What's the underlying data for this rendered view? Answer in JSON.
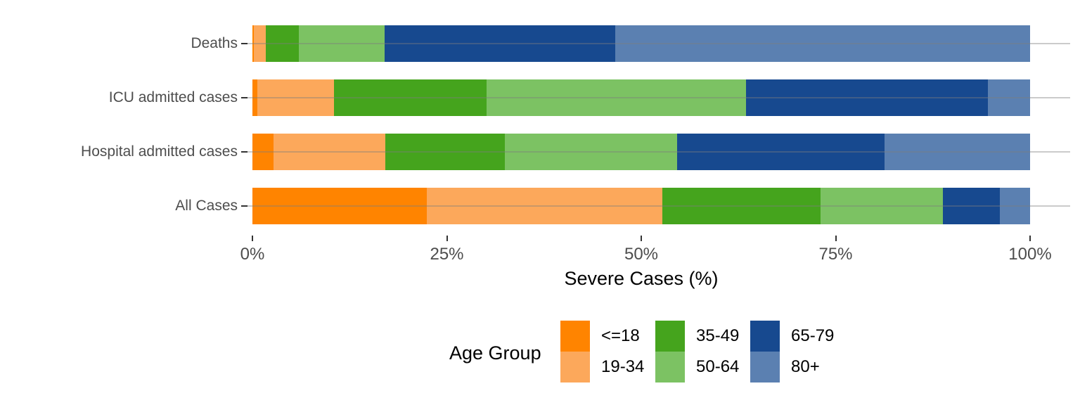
{
  "chart_data": {
    "type": "bar",
    "variant": "horizontal-stacked-percentage",
    "title": "",
    "xlabel": "Severe Cases (%)",
    "ylabel": "",
    "xlim": [
      0,
      100
    ],
    "x_ticks": [
      "0%",
      "25%",
      "50%",
      "75%",
      "100%"
    ],
    "x_tick_values": [
      0,
      25,
      50,
      75,
      100
    ],
    "grid": "horizontal category gridlines only",
    "categories": [
      "Deaths",
      "ICU admitted cases",
      "Hospital admitted cases",
      "All Cases"
    ],
    "series": [
      {
        "name": "<=18",
        "color": "#FF8400",
        "values": [
          0.2,
          0.6,
          2.7,
          22.4
        ]
      },
      {
        "name": "19-34",
        "color": "#FCA85B",
        "values": [
          1.5,
          9.9,
          14.4,
          30.3
        ]
      },
      {
        "name": "35-49",
        "color": "#45A41D",
        "values": [
          4.3,
          19.6,
          15.4,
          20.4
        ]
      },
      {
        "name": "50-64",
        "color": "#7CC263",
        "values": [
          11.0,
          33.4,
          22.1,
          15.7
        ]
      },
      {
        "name": "65-79",
        "color": "#17498F",
        "values": [
          29.7,
          31.1,
          26.7,
          7.3
        ]
      },
      {
        "name": "80+",
        "color": "#5B80B1",
        "values": [
          53.3,
          5.4,
          18.7,
          3.9
        ]
      }
    ],
    "legend": {
      "title": "Age Group",
      "position": "bottom-center",
      "columns": 3,
      "rows": 2,
      "order": [
        "<=18",
        "19-34",
        "35-49",
        "50-64",
        "65-79",
        "80+"
      ]
    },
    "text_colors": {
      "axis_text": "#4D4D4D",
      "axis_title": "#000000",
      "legend_text": "#000000"
    }
  }
}
